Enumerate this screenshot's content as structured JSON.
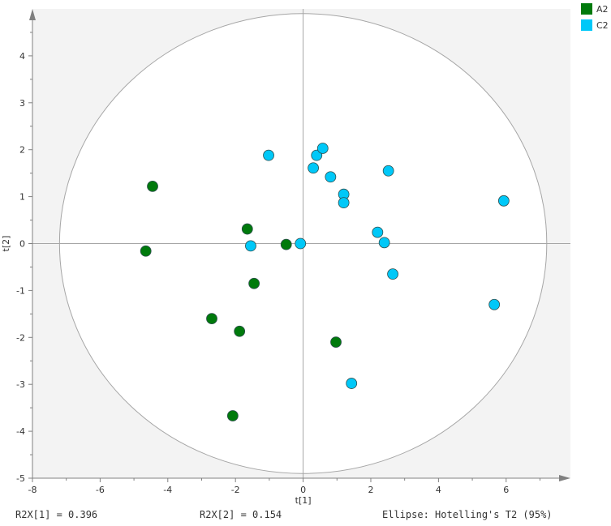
{
  "chart_data": {
    "type": "scatter",
    "xlabel": "t[1]",
    "ylabel": "t[2]",
    "xlim": [
      -8,
      7.9
    ],
    "ylim": [
      -5,
      5
    ],
    "xticks": [
      -8,
      -6,
      -4,
      -2,
      0,
      2,
      4,
      6
    ],
    "yticks": [
      -5,
      -4,
      -3,
      -2,
      -1,
      0,
      1,
      2,
      3,
      4
    ],
    "grid": false,
    "legend_position": "top-right",
    "ellipse": {
      "semi_axis_t1": 7.2,
      "semi_axis_t2": 4.9
    },
    "series": [
      {
        "name": "A2",
        "color": "#007a0c",
        "points": [
          [
            -4.45,
            1.22
          ],
          [
            -4.65,
            -0.16
          ],
          [
            -1.65,
            0.31
          ],
          [
            -0.5,
            -0.02
          ],
          [
            -1.45,
            -0.85
          ],
          [
            -2.7,
            -1.6
          ],
          [
            -1.88,
            -1.87
          ],
          [
            0.97,
            -2.1
          ],
          [
            -2.08,
            -3.67
          ]
        ]
      },
      {
        "name": "C2",
        "color": "#00c8f8",
        "points": [
          [
            -1.02,
            1.88
          ],
          [
            0.4,
            1.88
          ],
          [
            0.58,
            2.03
          ],
          [
            0.3,
            1.61
          ],
          [
            0.81,
            1.42
          ],
          [
            2.52,
            1.55
          ],
          [
            1.2,
            1.05
          ],
          [
            1.2,
            0.87
          ],
          [
            5.93,
            0.91
          ],
          [
            2.2,
            0.24
          ],
          [
            2.4,
            0.02
          ],
          [
            -1.55,
            -0.05
          ],
          [
            -0.08,
            0.0
          ],
          [
            2.65,
            -0.65
          ],
          [
            5.65,
            -1.3
          ],
          [
            1.43,
            -2.98
          ]
        ]
      }
    ]
  },
  "footer": {
    "r2x1": "R2X[1] = 0.396",
    "r2x2": "R2X[2] = 0.154",
    "ellipse_label": "Ellipse: Hotelling's T2 (95%)"
  }
}
